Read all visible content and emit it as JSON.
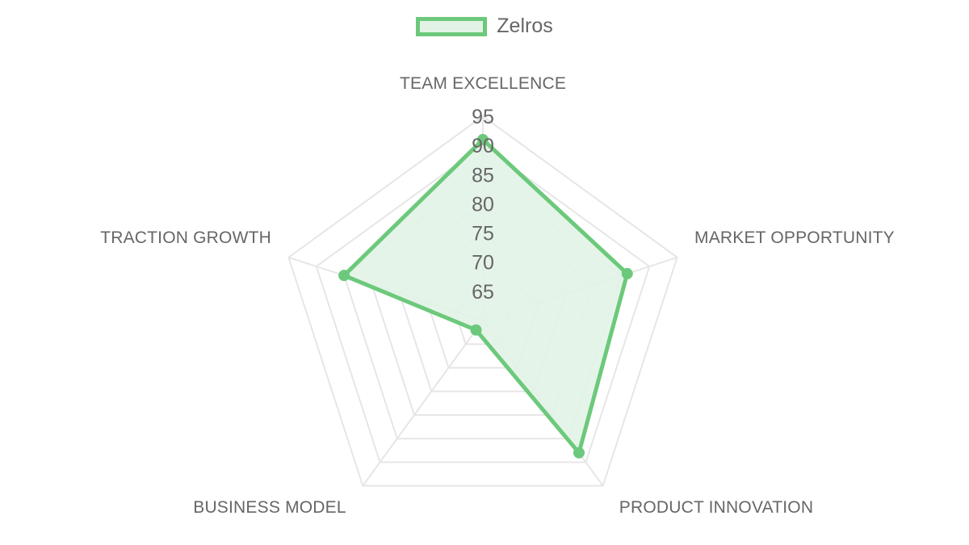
{
  "chart_data": {
    "type": "radar",
    "labels": [
      "TEAM EXCELLENCE",
      "MARKET OPPORTUNITY",
      "PRODUCT INNOVATION",
      "BUSINESS MODEL",
      "TRACTION GROWTH"
    ],
    "series": [
      {
        "name": "Zelros",
        "values": [
          91,
          86,
          88,
          62,
          85
        ]
      }
    ],
    "r_min": 60,
    "r_max": 95,
    "ticks": [
      "65",
      "70",
      "75",
      "80",
      "85",
      "90",
      "95"
    ],
    "legend_position": "top",
    "grid": true,
    "colors": {
      "line": "#6cc97b",
      "fill": "#e2f3e5",
      "grid": "#e6e6e6",
      "text": "#666666"
    }
  }
}
